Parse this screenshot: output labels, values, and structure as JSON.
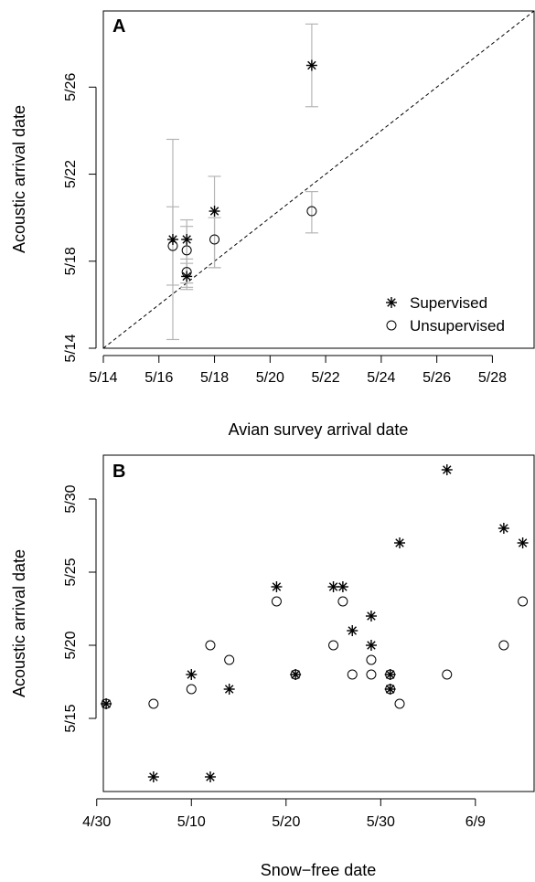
{
  "chart_data": [
    {
      "panel_label": "A",
      "type": "scatter",
      "xlabel": "Avian survey arrival date",
      "ylabel": "Acoustic arrival date",
      "xlim": [
        "5/14",
        "5/29.5"
      ],
      "ylim": [
        "5/14",
        "5/29.5"
      ],
      "x_ticks": [
        "5/14",
        "5/16",
        "5/18",
        "5/20",
        "5/22",
        "5/24",
        "5/26",
        "5/28"
      ],
      "y_ticks": [
        "5/14",
        "5/18",
        "5/22",
        "5/26"
      ],
      "reference_line": {
        "style": "dashed",
        "from": [
          "5/14",
          "5/14"
        ],
        "to": [
          "5/29.5",
          "5/29.5"
        ]
      },
      "legend": {
        "position": "bottom-right",
        "entries": [
          "Supervised",
          "Unsupervised"
        ]
      },
      "series": [
        {
          "name": "Supervised",
          "marker": "asterisk",
          "points": [
            {
              "x": "5/16.5",
              "y": "5/19.0",
              "ylo": "5/16.9",
              "yhi": "5/20.5"
            },
            {
              "x": "5/17.0",
              "y": "5/19.0",
              "ylo": "5/16.7",
              "yhi": "5/19.9"
            },
            {
              "x": "5/17.0",
              "y": "5/17.3",
              "ylo": "5/16.8",
              "yhi": "5/17.9"
            },
            {
              "x": "5/18.0",
              "y": "5/20.3",
              "ylo": "5/17.7",
              "yhi": "5/21.9"
            },
            {
              "x": "5/21.5",
              "y": "5/27.0",
              "ylo": "5/25.1",
              "yhi": "5/28.9"
            }
          ]
        },
        {
          "name": "Unsupervised",
          "marker": "circle",
          "points": [
            {
              "x": "5/16.5",
              "y": "5/18.7",
              "ylo": "5/14.4",
              "yhi": "5/23.6"
            },
            {
              "x": "5/17.0",
              "y": "5/18.5",
              "ylo": "5/17.0",
              "yhi": "5/19.6"
            },
            {
              "x": "5/17.0",
              "y": "5/17.5",
              "ylo": "5/17.0",
              "yhi": "5/18.1"
            },
            {
              "x": "5/18.0",
              "y": "5/19.0",
              "ylo": "5/17.7",
              "yhi": "5/20.0"
            },
            {
              "x": "5/21.5",
              "y": "5/20.3",
              "ylo": "5/19.3",
              "yhi": "5/21.2"
            }
          ]
        }
      ]
    },
    {
      "panel_label": "B",
      "type": "scatter",
      "xlabel": "Snow−free date",
      "ylabel": "Acoustic arrival date",
      "x_ticks": [
        "4/30",
        "5/10",
        "5/20",
        "5/30",
        "6/9"
      ],
      "y_ticks": [
        "5/15",
        "5/20",
        "5/25",
        "5/30"
      ],
      "series": [
        {
          "name": "Supervised",
          "marker": "asterisk",
          "points": [
            {
              "x": "5/1",
              "y": "5/16"
            },
            {
              "x": "5/6",
              "y": "5/11"
            },
            {
              "x": "5/10",
              "y": "5/18"
            },
            {
              "x": "5/12",
              "y": "5/11"
            },
            {
              "x": "5/14",
              "y": "5/17"
            },
            {
              "x": "5/19",
              "y": "5/24"
            },
            {
              "x": "5/21",
              "y": "5/18"
            },
            {
              "x": "5/25",
              "y": "5/24"
            },
            {
              "x": "5/26",
              "y": "5/24"
            },
            {
              "x": "5/27",
              "y": "5/21"
            },
            {
              "x": "5/29",
              "y": "5/22"
            },
            {
              "x": "5/29",
              "y": "5/20"
            },
            {
              "x": "5/31",
              "y": "5/18"
            },
            {
              "x": "5/31",
              "y": "5/17"
            },
            {
              "x": "6/1",
              "y": "5/27"
            },
            {
              "x": "6/6",
              "y": "6/1"
            },
            {
              "x": "6/12",
              "y": "5/28"
            },
            {
              "x": "6/14",
              "y": "5/27"
            }
          ]
        },
        {
          "name": "Unsupervised",
          "marker": "circle",
          "points": [
            {
              "x": "5/1",
              "y": "5/16"
            },
            {
              "x": "5/6",
              "y": "5/16"
            },
            {
              "x": "5/10",
              "y": "5/17"
            },
            {
              "x": "5/12",
              "y": "5/20"
            },
            {
              "x": "5/14",
              "y": "5/19"
            },
            {
              "x": "5/19",
              "y": "5/23"
            },
            {
              "x": "5/21",
              "y": "5/18"
            },
            {
              "x": "5/25",
              "y": "5/20"
            },
            {
              "x": "5/26",
              "y": "5/23"
            },
            {
              "x": "5/27",
              "y": "5/18"
            },
            {
              "x": "5/29",
              "y": "5/19"
            },
            {
              "x": "5/29",
              "y": "5/18"
            },
            {
              "x": "5/31",
              "y": "5/18"
            },
            {
              "x": "5/31",
              "y": "5/17"
            },
            {
              "x": "6/1",
              "y": "5/16"
            },
            {
              "x": "6/6",
              "y": "5/18"
            },
            {
              "x": "6/12",
              "y": "5/20"
            },
            {
              "x": "6/14",
              "y": "5/23"
            }
          ]
        }
      ]
    }
  ]
}
